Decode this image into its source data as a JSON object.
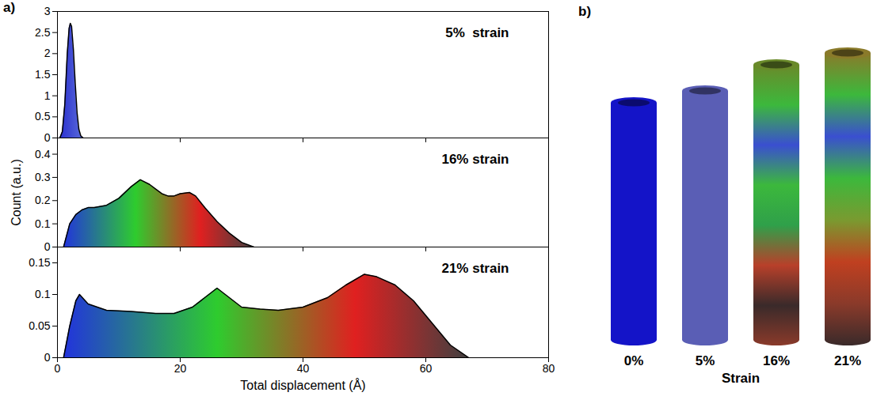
{
  "panel_labels": [
    "a)",
    "b)"
  ],
  "chart_data": [
    {
      "type": "area",
      "title": "5%  strain",
      "x": [
        0.4,
        0.8,
        1.2,
        1.6,
        1.9,
        2.1,
        2.3,
        2.6,
        2.9,
        3.2,
        3.5,
        3.8,
        4.2
      ],
      "values": [
        0,
        0.15,
        0.8,
        2.0,
        2.6,
        2.72,
        2.65,
        2.1,
        1.3,
        0.6,
        0.2,
        0.05,
        0
      ],
      "colors": [
        "#2a30d0",
        "#5a6ad8"
      ],
      "xlim": [
        0,
        80
      ],
      "xticks": [
        0,
        20,
        40,
        60,
        80
      ],
      "ylim": [
        0,
        3
      ],
      "yticks": [
        0,
        0.5,
        1,
        1.5,
        2,
        2.5,
        3
      ],
      "tick_labels": "y"
    },
    {
      "type": "area",
      "title": "16% strain",
      "ylabel": "Count (a.u.)",
      "x": [
        1,
        2,
        3,
        4,
        5,
        6,
        8,
        10,
        12,
        13.5,
        15,
        16,
        17,
        18,
        19,
        20,
        21.5,
        22.5,
        24,
        26,
        28,
        30,
        32
      ],
      "values": [
        0,
        0.1,
        0.14,
        0.16,
        0.17,
        0.17,
        0.18,
        0.21,
        0.26,
        0.29,
        0.27,
        0.25,
        0.23,
        0.22,
        0.22,
        0.23,
        0.235,
        0.22,
        0.17,
        0.11,
        0.06,
        0.02,
        0
      ],
      "colors": [
        "#2233dd",
        "#2ecc2e",
        "#e02020",
        "#404040"
      ],
      "xlim": [
        0,
        80
      ],
      "xticks": [
        0,
        20,
        40,
        60,
        80
      ],
      "ylim": [
        0,
        0.47
      ],
      "yticks": [
        0,
        0.1,
        0.2,
        0.3,
        0.4
      ],
      "tick_labels": "y"
    },
    {
      "type": "area",
      "title": "21% strain",
      "xlabel": "Total displacement (Å)",
      "x": [
        1,
        2,
        3,
        3.6,
        5,
        8,
        12,
        16,
        19,
        22,
        24,
        26,
        28,
        30,
        33,
        36,
        40,
        44,
        47,
        50,
        52,
        55,
        58,
        61,
        64,
        67
      ],
      "values": [
        0,
        0.05,
        0.09,
        0.1,
        0.085,
        0.075,
        0.073,
        0.07,
        0.07,
        0.08,
        0.095,
        0.11,
        0.095,
        0.08,
        0.077,
        0.075,
        0.08,
        0.095,
        0.115,
        0.132,
        0.128,
        0.115,
        0.09,
        0.055,
        0.02,
        0
      ],
      "colors": [
        "#2233dd",
        "#2ecc2e",
        "#e02020",
        "#404040"
      ],
      "xlim": [
        0,
        80
      ],
      "xticks": [
        0,
        20,
        40,
        60,
        80
      ],
      "ylim": [
        0,
        0.175
      ],
      "yticks": [
        0,
        0.05,
        0.1,
        0.15
      ]
    }
  ],
  "panel_b": {
    "xlabel": "Strain",
    "tubes": [
      {
        "strain": 0,
        "label": "0%",
        "colors": [
          "#1414c8"
        ]
      },
      {
        "strain": 5,
        "label": "5%",
        "colors": [
          "#5a5eb5"
        ]
      },
      {
        "strain": 16,
        "label": "16%",
        "colors": [
          "#6a8a2a",
          "#3cb83c",
          "#3a4fd0",
          "#3cb83c",
          "#2fa04a",
          "#b8402a",
          "#3a2a2a",
          "#8a3a2a"
        ]
      },
      {
        "strain": 21,
        "label": "21%",
        "colors": [
          "#8a7a2a",
          "#3cb83c",
          "#3a4fd0",
          "#3cb83c",
          "#7a9a30",
          "#c04020",
          "#8a3a2a",
          "#3a2a2a"
        ]
      }
    ]
  }
}
